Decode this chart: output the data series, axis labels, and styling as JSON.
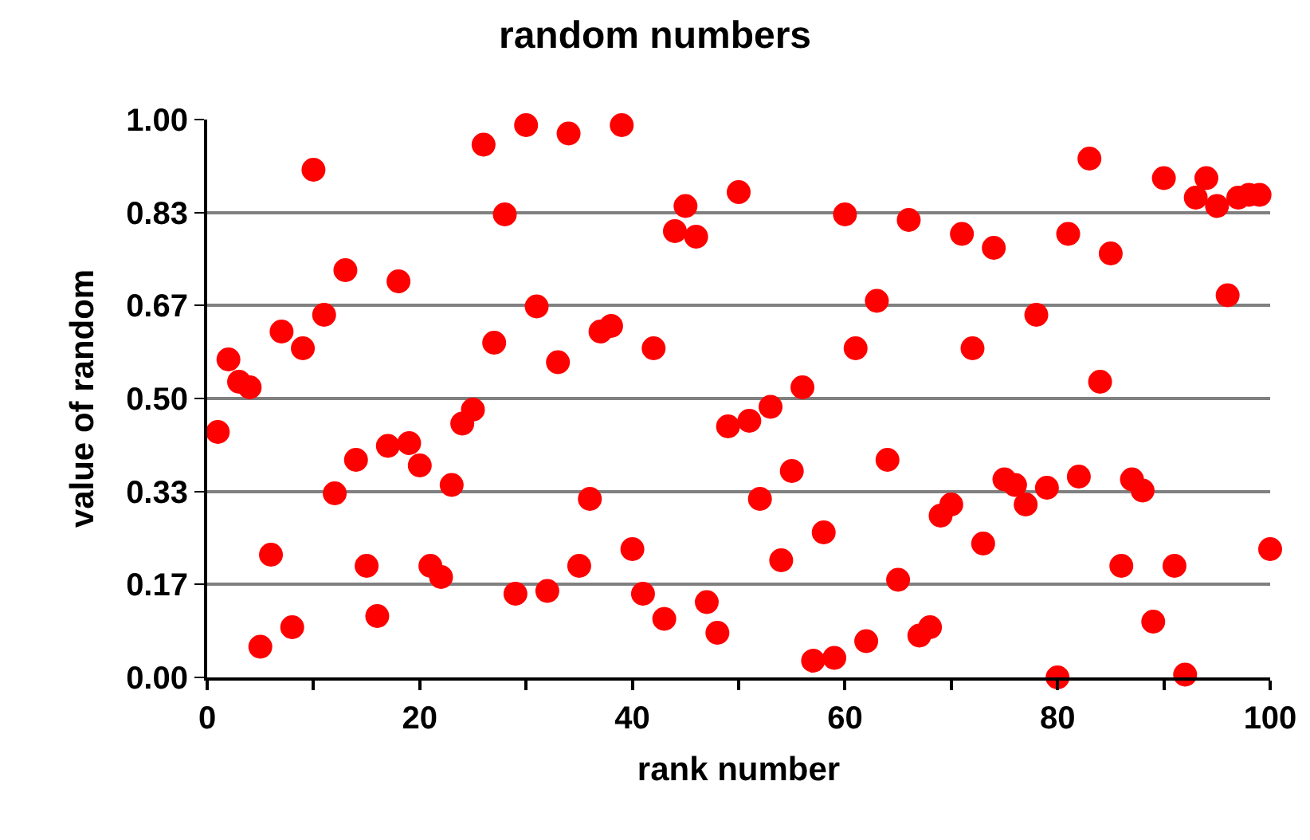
{
  "chart_data": {
    "type": "scatter",
    "title": "random numbers",
    "xlabel": "rank number",
    "ylabel": "value of random",
    "x": [
      1,
      2,
      3,
      4,
      5,
      6,
      7,
      8,
      9,
      10,
      11,
      12,
      13,
      14,
      15,
      16,
      17,
      18,
      19,
      20,
      21,
      22,
      23,
      24,
      25,
      26,
      27,
      28,
      29,
      30,
      31,
      32,
      33,
      34,
      35,
      36,
      37,
      38,
      39,
      40,
      41,
      42,
      43,
      44,
      45,
      46,
      47,
      48,
      49,
      50,
      51,
      52,
      53,
      54,
      55,
      56,
      57,
      58,
      59,
      60,
      61,
      62,
      63,
      64,
      65,
      66,
      67,
      68,
      69,
      70,
      71,
      72,
      73,
      74,
      75,
      76,
      77,
      78,
      79,
      80,
      81,
      82,
      83,
      84,
      85,
      86,
      87,
      88,
      89,
      90,
      91,
      92,
      93,
      94,
      95,
      96,
      97,
      98,
      99,
      100
    ],
    "series": [
      {
        "color": "#ff0000",
        "values": [
          0.44,
          0.57,
          0.53,
          0.52,
          0.055,
          0.22,
          0.62,
          0.09,
          0.59,
          0.91,
          0.65,
          0.33,
          0.73,
          0.39,
          0.2,
          0.11,
          0.415,
          0.71,
          0.42,
          0.38,
          0.2,
          0.18,
          0.345,
          0.455,
          0.48,
          0.955,
          0.6,
          0.83,
          0.15,
          0.99,
          0.665,
          0.155,
          0.565,
          0.975,
          0.2,
          0.32,
          0.62,
          0.63,
          0.99,
          0.23,
          0.15,
          0.59,
          0.105,
          0.8,
          0.845,
          0.79,
          0.135,
          0.08,
          0.45,
          0.87,
          0.46,
          0.32,
          0.485,
          0.21,
          0.37,
          0.52,
          0.03,
          0.26,
          0.035,
          0.83,
          0.59,
          0.065,
          0.675,
          0.39,
          0.175,
          0.82,
          0.075,
          0.09,
          0.29,
          0.31,
          0.795,
          0.59,
          0.24,
          0.77,
          0.355,
          0.345,
          0.31,
          0.65,
          0.34,
          0.0,
          0.795,
          0.36,
          0.93,
          0.53,
          0.76,
          0.2,
          0.355,
          0.335,
          0.1,
          0.895,
          0.2,
          0.005,
          0.86,
          0.895,
          0.845,
          0.685,
          0.86,
          0.865,
          0.865,
          0.23
        ]
      }
    ],
    "xlim": [
      0,
      100
    ],
    "xticks": [
      0,
      {
        "value": 10,
        "label": null
      },
      20,
      {
        "value": 30,
        "label": null
      },
      40,
      {
        "value": 50,
        "label": null
      },
      60,
      {
        "value": 70,
        "label": null
      },
      80,
      {
        "value": 90,
        "label": null
      },
      100
    ],
    "ylim": [
      0,
      1
    ],
    "yticks": [
      {
        "value": 0,
        "label": "0.00"
      },
      {
        "value": 0.1667,
        "label": "0.17"
      },
      {
        "value": 0.3333,
        "label": "0.33"
      },
      {
        "value": 0.5,
        "label": "0.50"
      },
      {
        "value": 0.6667,
        "label": "0.67"
      },
      {
        "value": 0.8333,
        "label": "0.83"
      },
      {
        "value": 1,
        "label": "1.00"
      }
    ],
    "grid": "y",
    "marker": "circle"
  }
}
